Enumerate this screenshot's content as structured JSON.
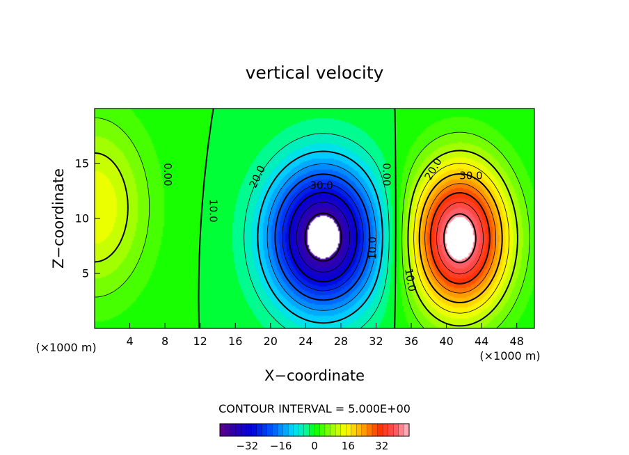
{
  "chart_data": {
    "type": "heatmap",
    "title": "vertical velocity",
    "xlabel": "X−coordinate",
    "ylabel": "Z−coordinate",
    "x_unit_left": "(×1000 m)",
    "x_unit_right": "(×1000 m)",
    "xlim": [
      0,
      50
    ],
    "ylim": [
      0,
      20
    ],
    "x_ticks": [
      4,
      8,
      12,
      16,
      20,
      24,
      28,
      32,
      36,
      40,
      44,
      48
    ],
    "y_ticks": [
      5,
      10,
      15
    ],
    "x_tick_labels": [
      "4",
      "8",
      "12",
      "16",
      "20",
      "24",
      "28",
      "32",
      "36",
      "40",
      "44",
      "48"
    ],
    "y_tick_labels": [
      "5",
      "10",
      "15"
    ],
    "contour_interval_text": "CONTOUR INTERVAL = 5.000E+00",
    "contour_interval": 5,
    "cells": [
      {
        "name": "left-updraft",
        "x": 0,
        "z": 11,
        "peak": 15,
        "sx": 4.2,
        "sz": 5.5
      },
      {
        "name": "central-downdraft",
        "x": 26,
        "z": 8.3,
        "peak": -45,
        "sx": 4.3,
        "sz": 4.5
      },
      {
        "name": "right-updraft",
        "x": 41.5,
        "z": 8.2,
        "peak": 45,
        "sx": 3.8,
        "sz": 4.6
      }
    ],
    "contour_labels": [
      {
        "text": "0.00",
        "x": 8.3,
        "z": 14,
        "rotate": 90
      },
      {
        "text": "0.00",
        "x": 33.2,
        "z": 14,
        "rotate": 90
      },
      {
        "text": "10.0",
        "x": 13.5,
        "z": 10.7,
        "rotate": 90
      },
      {
        "text": "20.0",
        "x": 18.5,
        "z": 13.8,
        "rotate": -65
      },
      {
        "text": "30.0",
        "x": 25.8,
        "z": 13.0,
        "rotate": 0
      },
      {
        "text": "10.0",
        "x": 31.6,
        "z": 7.3,
        "rotate": -90
      },
      {
        "text": "20.0",
        "x": 38.5,
        "z": 14.5,
        "rotate": -60
      },
      {
        "text": "30.0",
        "x": 42.8,
        "z": 13.9,
        "rotate": 0
      },
      {
        "text": "10.0",
        "x": 35.9,
        "z": 4.4,
        "rotate": 80
      }
    ],
    "colorbar": {
      "range": [
        -45,
        45
      ],
      "ticks": [
        -32,
        -16,
        0,
        16,
        32
      ],
      "tick_labels": [
        "−32",
        "−16",
        "0",
        "16",
        "32"
      ]
    },
    "colors": {
      "background": "#00ff00",
      "extreme": "#ffffff",
      "contour": "#000000"
    }
  }
}
